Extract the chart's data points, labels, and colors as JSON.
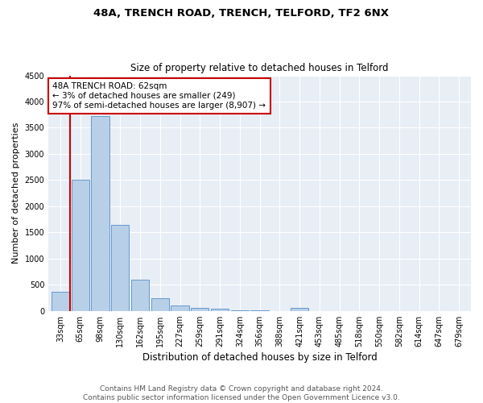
{
  "title1": "48A, TRENCH ROAD, TRENCH, TELFORD, TF2 6NX",
  "title2": "Size of property relative to detached houses in Telford",
  "xlabel": "Distribution of detached houses by size in Telford",
  "ylabel": "Number of detached properties",
  "bar_labels": [
    "33sqm",
    "65sqm",
    "98sqm",
    "130sqm",
    "162sqm",
    "195sqm",
    "227sqm",
    "259sqm",
    "291sqm",
    "324sqm",
    "356sqm",
    "388sqm",
    "421sqm",
    "453sqm",
    "485sqm",
    "518sqm",
    "550sqm",
    "582sqm",
    "614sqm",
    "647sqm",
    "679sqm"
  ],
  "bar_values": [
    370,
    2500,
    3720,
    1640,
    600,
    240,
    110,
    60,
    40,
    10,
    5,
    0,
    60,
    0,
    0,
    0,
    0,
    0,
    0,
    0,
    0
  ],
  "bar_color": "#b8cfe8",
  "bar_edge_color": "#6699cc",
  "highlight_color": "#cc0000",
  "ylim": [
    0,
    4500
  ],
  "yticks": [
    0,
    500,
    1000,
    1500,
    2000,
    2500,
    3000,
    3500,
    4000,
    4500
  ],
  "annotation_text": "48A TRENCH ROAD: 62sqm\n← 3% of detached houses are smaller (249)\n97% of semi-detached houses are larger (8,907) →",
  "annotation_box_color": "#ffffff",
  "annotation_border_color": "#cc0000",
  "footer_text": "Contains HM Land Registry data © Crown copyright and database right 2024.\nContains public sector information licensed under the Open Government Licence v3.0.",
  "plot_bg_color": "#e8eef5",
  "grid_color": "#ffffff",
  "title1_fontsize": 9.5,
  "title2_fontsize": 8.5,
  "xlabel_fontsize": 8.5,
  "ylabel_fontsize": 8.0,
  "tick_fontsize": 7.0,
  "ann_fontsize": 7.5,
  "footer_fontsize": 6.5
}
